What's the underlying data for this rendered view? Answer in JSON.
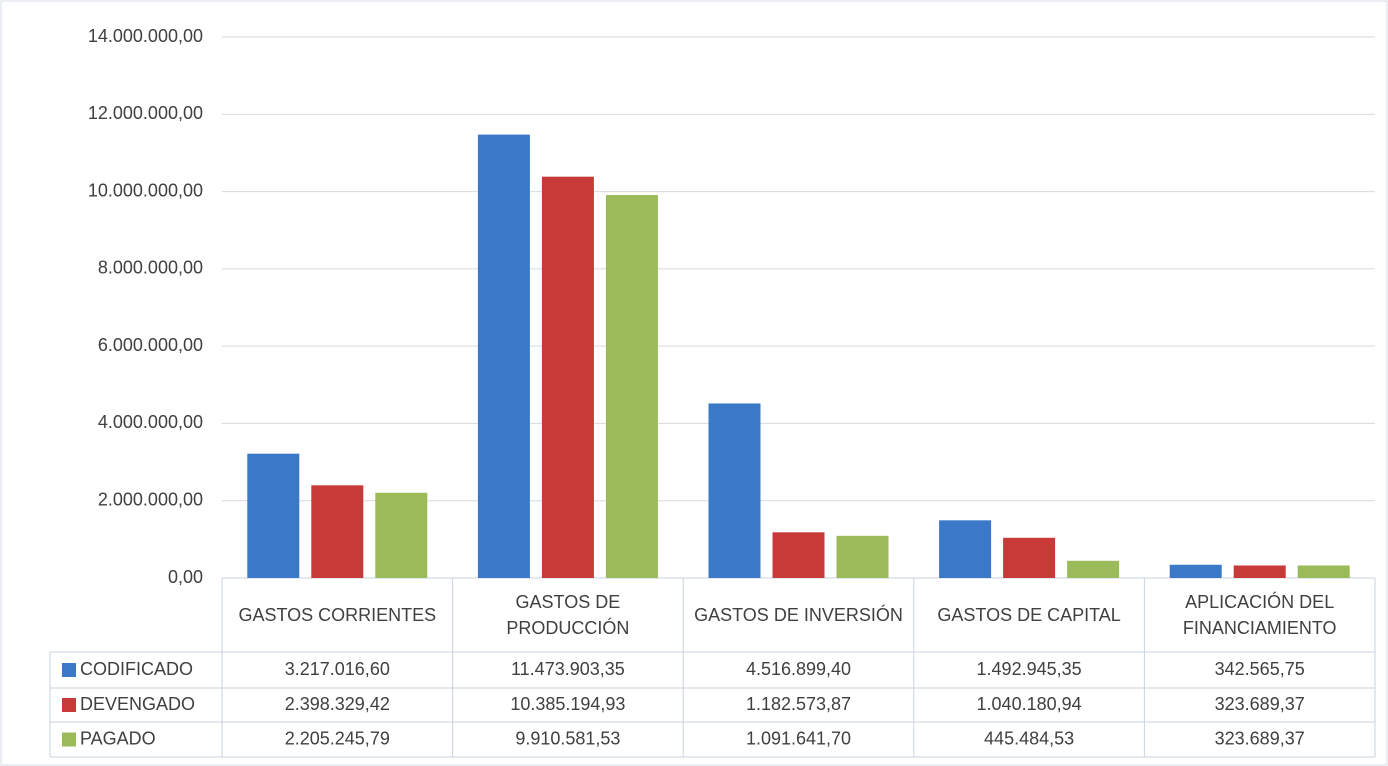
{
  "chart_data": {
    "type": "bar",
    "categories": [
      "GASTOS CORRIENTES",
      "GASTOS DE PRODUCCIÓN",
      "GASTOS DE INVERSIÓN",
      "GASTOS DE CAPITAL",
      "APLICACIÓN DEL FINANCIAMIENTO"
    ],
    "series": [
      {
        "name": "CODIFICADO",
        "color": "#3b78c8",
        "values": [
          3217016.6,
          11473903.35,
          4516899.4,
          1492945.35,
          342565.75
        ],
        "value_labels": [
          "3.217.016,60",
          "11.473.903,35",
          "4.516.899,40",
          "1.492.945,35",
          "342.565,75"
        ]
      },
      {
        "name": "DEVENGADO",
        "color": "#c83a38",
        "values": [
          2398329.42,
          10385194.93,
          1182573.87,
          1040180.94,
          323689.37
        ],
        "value_labels": [
          "2.398.329,42",
          "10.385.194,93",
          "1.182.573,87",
          "1.040.180,94",
          "323.689,37"
        ]
      },
      {
        "name": "PAGADO",
        "color": "#9bbb59",
        "values": [
          2205245.79,
          9910581.53,
          1091641.7,
          445484.53,
          323689.37
        ],
        "value_labels": [
          "2.205.245,79",
          "9.910.581,53",
          "1.091.641,70",
          "445.484,53",
          "323.689,37"
        ]
      }
    ],
    "ylim": [
      0,
      14000000
    ],
    "yticks": [
      {
        "value": 0,
        "label": "0,00"
      },
      {
        "value": 2000000,
        "label": "2.000.000,00"
      },
      {
        "value": 4000000,
        "label": "4.000.000,00"
      },
      {
        "value": 6000000,
        "label": "6.000.000,00"
      },
      {
        "value": 8000000,
        "label": "8.000.000,00"
      },
      {
        "value": 10000000,
        "label": "10.000.000,00"
      },
      {
        "value": 12000000,
        "label": "12.000.000,00"
      },
      {
        "value": 14000000,
        "label": "14.000.000,00"
      }
    ],
    "grid": true
  }
}
